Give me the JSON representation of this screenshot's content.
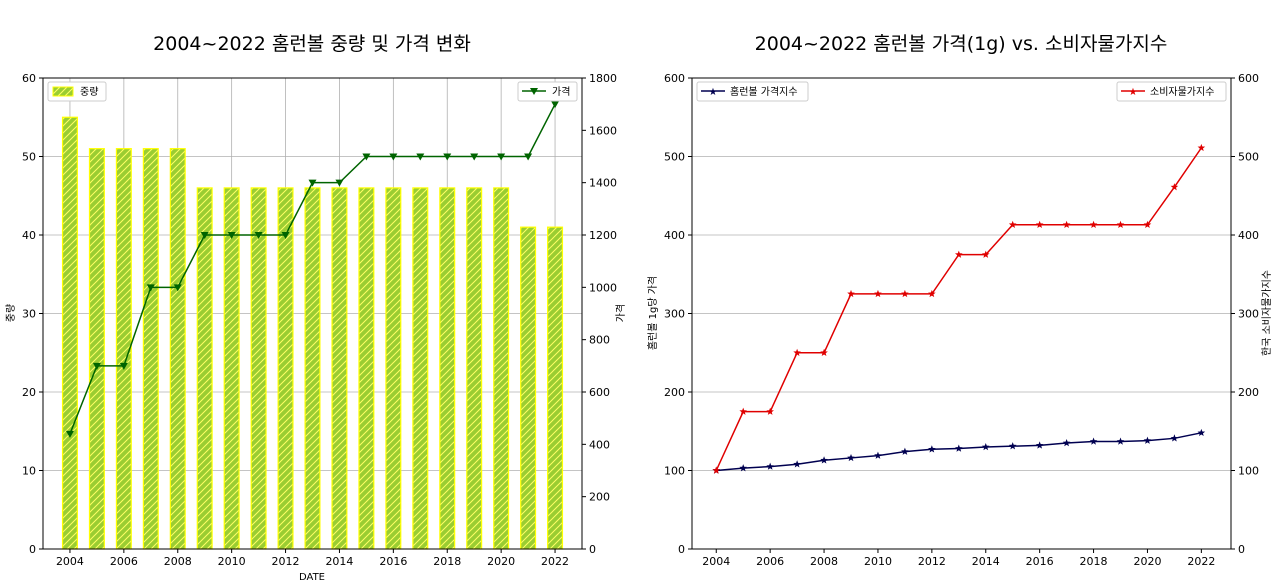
{
  "chart_data": [
    {
      "type": "bar",
      "title": "2004~2022 홈런볼 중량 및 가격 변화",
      "xlabel": "DATE",
      "ylabel": "중량",
      "y2label": "가격",
      "x": [
        2004,
        2005,
        2006,
        2007,
        2008,
        2009,
        2010,
        2011,
        2012,
        2013,
        2014,
        2015,
        2016,
        2017,
        2018,
        2019,
        2020,
        2021,
        2022
      ],
      "xticks": [
        "2004",
        "2006",
        "2008",
        "2010",
        "2012",
        "2014",
        "2016",
        "2018",
        "2020",
        "2022"
      ],
      "ylim": [
        0,
        60
      ],
      "yticks": [
        "0",
        "10",
        "20",
        "30",
        "40",
        "50",
        "60"
      ],
      "y2lim": [
        0,
        1800
      ],
      "y2ticks": [
        "0",
        "200",
        "400",
        "600",
        "800",
        "1000",
        "1200",
        "1400",
        "1600",
        "1800"
      ],
      "series": [
        {
          "name": "중량",
          "kind": "bar",
          "axis": "left",
          "color": "#9acd32",
          "edge": "#ffff00",
          "values": [
            55,
            51,
            51,
            51,
            51,
            46,
            46,
            46,
            46,
            46,
            46,
            46,
            46,
            46,
            46,
            46,
            46,
            41,
            41
          ]
        },
        {
          "name": "가격",
          "kind": "line",
          "axis": "right",
          "color": "#006400",
          "marker": "triangle-down",
          "values": [
            440,
            700,
            700,
            1000,
            1000,
            1200,
            1200,
            1200,
            1200,
            1400,
            1400,
            1500,
            1500,
            1500,
            1500,
            1500,
            1500,
            1500,
            1700
          ]
        }
      ],
      "legend": {
        "left": "top-left",
        "right": "top-right"
      },
      "grid": true
    },
    {
      "type": "line",
      "title": "2004~2022 홈런볼 가격(1g) vs. 소비자물가지수",
      "xlabel": "",
      "ylabel": "홈런볼 1g당 가격",
      "y2label": "한국 소비자물가지수",
      "x": [
        2004,
        2005,
        2006,
        2007,
        2008,
        2009,
        2010,
        2011,
        2012,
        2013,
        2014,
        2015,
        2016,
        2017,
        2018,
        2019,
        2020,
        2021,
        2022
      ],
      "xticks": [
        "2004",
        "2006",
        "2008",
        "2010",
        "2012",
        "2014",
        "2016",
        "2018",
        "2020",
        "2022"
      ],
      "ylim": [
        0,
        600
      ],
      "yticks": [
        "0",
        "100",
        "200",
        "300",
        "400",
        "500",
        "600"
      ],
      "y2lim": [
        0,
        600
      ],
      "y2ticks": [
        "0",
        "100",
        "200",
        "300",
        "400",
        "500",
        "600"
      ],
      "series": [
        {
          "name": "홈런볼 가격지수",
          "axis": "left",
          "color": "#000050",
          "marker": "star",
          "values": [
            100,
            103,
            105,
            108,
            113,
            116,
            119,
            124,
            127,
            128,
            130,
            131,
            132,
            135,
            137,
            137,
            138,
            141,
            148
          ]
        },
        {
          "name": "소비자물가지수",
          "axis": "right",
          "color": "#e00000",
          "marker": "star",
          "values": [
            100,
            175,
            175,
            250,
            250,
            325,
            325,
            325,
            325,
            375,
            375,
            413,
            413,
            413,
            413,
            413,
            413,
            461,
            511
          ]
        }
      ],
      "legend": {
        "left": "top-left",
        "right": "top-right"
      },
      "grid": true
    }
  ]
}
